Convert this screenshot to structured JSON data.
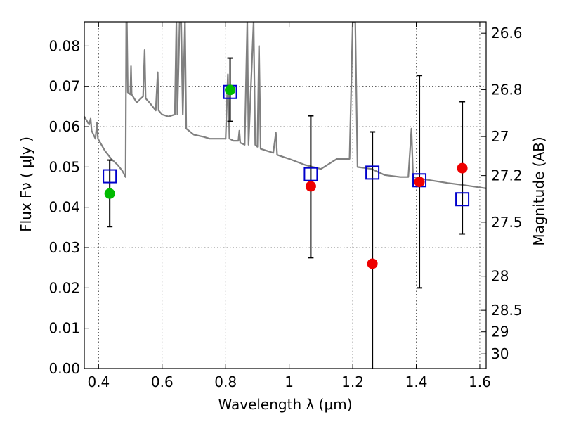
{
  "chart_data": {
    "type": "scatter",
    "xlabel": "Wavelength  λ (μm)",
    "ylabel_left": "Flux  Fν  ( μJy )",
    "ylabel_right": "Magnitude (AB)",
    "xlim": [
      0.355,
      1.62
    ],
    "ylim": [
      0.0,
      0.086
    ],
    "grid": true,
    "x_ticks": [
      {
        "value": 0.4,
        "label": "0.4"
      },
      {
        "value": 0.6,
        "label": "0.6"
      },
      {
        "value": 0.8,
        "label": "0.8"
      },
      {
        "value": 1.0,
        "label": "1"
      },
      {
        "value": 1.2,
        "label": "1.2"
      },
      {
        "value": 1.4,
        "label": "1.4"
      },
      {
        "value": 1.6,
        "label": "1.6"
      }
    ],
    "y_ticks": [
      {
        "value": 0.0,
        "label": "0.00"
      },
      {
        "value": 0.01,
        "label": "0.01"
      },
      {
        "value": 0.02,
        "label": "0.02"
      },
      {
        "value": 0.03,
        "label": "0.03"
      },
      {
        "value": 0.04,
        "label": "0.04"
      },
      {
        "value": 0.05,
        "label": "0.05"
      },
      {
        "value": 0.06,
        "label": "0.06"
      },
      {
        "value": 0.07,
        "label": "0.07"
      },
      {
        "value": 0.08,
        "label": "0.08"
      }
    ],
    "right_ticks": [
      {
        "value": 26.6,
        "label": "26.6"
      },
      {
        "value": 26.8,
        "label": "26.8"
      },
      {
        "value": 27.0,
        "label": "27"
      },
      {
        "value": 27.2,
        "label": "27.2"
      },
      {
        "value": 27.5,
        "label": "27.5"
      },
      {
        "value": 28.0,
        "label": "28"
      },
      {
        "value": 28.5,
        "label": "28.5"
      },
      {
        "value": 29.0,
        "label": "29"
      },
      {
        "value": 30.0,
        "label": "30"
      }
    ],
    "series": [
      {
        "marker": "square",
        "color": "#0000cc",
        "points": [
          {
            "x": 0.435,
            "y": 0.0477
          },
          {
            "x": 0.814,
            "y": 0.0686
          },
          {
            "x": 1.068,
            "y": 0.0482
          },
          {
            "x": 1.262,
            "y": 0.0486
          },
          {
            "x": 1.41,
            "y": 0.0467
          },
          {
            "x": 1.545,
            "y": 0.042
          }
        ]
      },
      {
        "marker": "circle",
        "color": "#00bb00",
        "points": [
          {
            "x": 0.435,
            "y": 0.0434,
            "err_low": 0.0352,
            "err_high": 0.0517
          },
          {
            "x": 0.814,
            "y": 0.0691,
            "err_low": 0.0613,
            "err_high": 0.077
          }
        ]
      },
      {
        "marker": "circle",
        "color": "#ee0000",
        "points": [
          {
            "x": 1.068,
            "y": 0.0452,
            "err_low": 0.0275,
            "err_high": 0.0627
          },
          {
            "x": 1.262,
            "y": 0.026,
            "err_low": 0.0,
            "err_high": 0.0587
          },
          {
            "x": 1.41,
            "y": 0.0463,
            "err_low": 0.02,
            "err_high": 0.0727
          },
          {
            "x": 1.545,
            "y": 0.0497,
            "err_low": 0.0334,
            "err_high": 0.0662
          }
        ]
      },
      {
        "marker": "line",
        "color": "#808080",
        "points": [
          {
            "x": 0.355,
            "y": 0.0625
          },
          {
            "x": 0.37,
            "y": 0.0605
          },
          {
            "x": 0.375,
            "y": 0.062
          },
          {
            "x": 0.378,
            "y": 0.059
          },
          {
            "x": 0.39,
            "y": 0.057
          },
          {
            "x": 0.395,
            "y": 0.061
          },
          {
            "x": 0.398,
            "y": 0.057
          },
          {
            "x": 0.42,
            "y": 0.054
          },
          {
            "x": 0.44,
            "y": 0.052
          },
          {
            "x": 0.46,
            "y": 0.0505
          },
          {
            "x": 0.475,
            "y": 0.049
          },
          {
            "x": 0.485,
            "y": 0.0475
          },
          {
            "x": 0.487,
            "y": 0.086
          },
          {
            "x": 0.489,
            "y": 0.086
          },
          {
            "x": 0.492,
            "y": 0.0685
          },
          {
            "x": 0.5,
            "y": 0.068
          },
          {
            "x": 0.502,
            "y": 0.075
          },
          {
            "x": 0.504,
            "y": 0.068
          },
          {
            "x": 0.52,
            "y": 0.066
          },
          {
            "x": 0.54,
            "y": 0.0675
          },
          {
            "x": 0.545,
            "y": 0.079
          },
          {
            "x": 0.548,
            "y": 0.067
          },
          {
            "x": 0.56,
            "y": 0.066
          },
          {
            "x": 0.58,
            "y": 0.064
          },
          {
            "x": 0.586,
            "y": 0.0735
          },
          {
            "x": 0.589,
            "y": 0.064
          },
          {
            "x": 0.6,
            "y": 0.063
          },
          {
            "x": 0.62,
            "y": 0.0625
          },
          {
            "x": 0.64,
            "y": 0.063
          },
          {
            "x": 0.645,
            "y": 0.086
          },
          {
            "x": 0.648,
            "y": 0.063
          },
          {
            "x": 0.655,
            "y": 0.086
          },
          {
            "x": 0.66,
            "y": 0.086
          },
          {
            "x": 0.665,
            "y": 0.063
          },
          {
            "x": 0.672,
            "y": 0.086
          },
          {
            "x": 0.676,
            "y": 0.0595
          },
          {
            "x": 0.7,
            "y": 0.058
          },
          {
            "x": 0.73,
            "y": 0.0575
          },
          {
            "x": 0.75,
            "y": 0.057
          },
          {
            "x": 0.78,
            "y": 0.057
          },
          {
            "x": 0.8,
            "y": 0.057
          },
          {
            "x": 0.807,
            "y": 0.073
          },
          {
            "x": 0.812,
            "y": 0.057
          },
          {
            "x": 0.825,
            "y": 0.0565
          },
          {
            "x": 0.84,
            "y": 0.0565
          },
          {
            "x": 0.843,
            "y": 0.059
          },
          {
            "x": 0.846,
            "y": 0.056
          },
          {
            "x": 0.86,
            "y": 0.0555
          },
          {
            "x": 0.868,
            "y": 0.086
          },
          {
            "x": 0.872,
            "y": 0.0555
          },
          {
            "x": 0.888,
            "y": 0.086
          },
          {
            "x": 0.893,
            "y": 0.0555
          },
          {
            "x": 0.9,
            "y": 0.055
          },
          {
            "x": 0.905,
            "y": 0.08
          },
          {
            "x": 0.91,
            "y": 0.0545
          },
          {
            "x": 0.95,
            "y": 0.0535
          },
          {
            "x": 0.958,
            "y": 0.0585
          },
          {
            "x": 0.962,
            "y": 0.053
          },
          {
            "x": 1.0,
            "y": 0.052
          },
          {
            "x": 1.05,
            "y": 0.0505
          },
          {
            "x": 1.1,
            "y": 0.0495
          },
          {
            "x": 1.15,
            "y": 0.052
          },
          {
            "x": 1.19,
            "y": 0.052
          },
          {
            "x": 1.2,
            "y": 0.086
          },
          {
            "x": 1.208,
            "y": 0.086
          },
          {
            "x": 1.215,
            "y": 0.05
          },
          {
            "x": 1.26,
            "y": 0.0495
          },
          {
            "x": 1.3,
            "y": 0.048
          },
          {
            "x": 1.35,
            "y": 0.0475
          },
          {
            "x": 1.375,
            "y": 0.0475
          },
          {
            "x": 1.385,
            "y": 0.0595
          },
          {
            "x": 1.39,
            "y": 0.0475
          },
          {
            "x": 1.42,
            "y": 0.047
          },
          {
            "x": 1.46,
            "y": 0.0465
          },
          {
            "x": 1.5,
            "y": 0.046
          },
          {
            "x": 1.55,
            "y": 0.0455
          },
          {
            "x": 1.62,
            "y": 0.0447
          }
        ]
      }
    ]
  }
}
